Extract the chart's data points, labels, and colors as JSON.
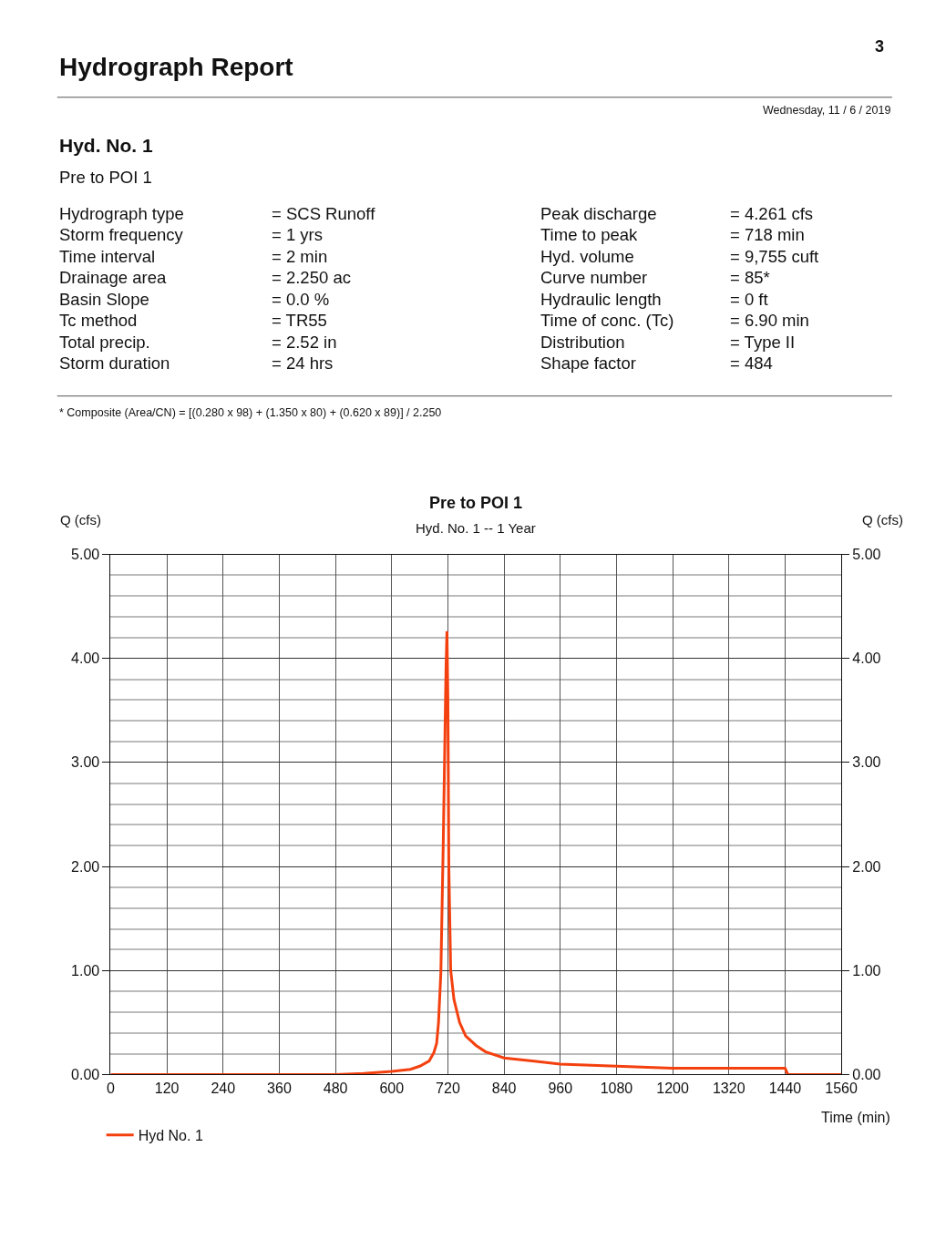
{
  "chart_data": {
    "type": "line",
    "title": "Pre to POI 1",
    "subtitle": "Hyd. No. 1 -- 1 Year",
    "xlabel": "Time (min)",
    "ylabel": "Q (cfs)",
    "y2label": "Q (cfs)",
    "annotations": [
      "3",
      "Hydrograph Report",
      "Wednesday, 11 / 6 / 2019",
      "Hyd. No. 1",
      "Pre to POI 1",
      "Hydrograph type",
      "Storm frequency",
      "Time interval",
      "Drainage area",
      "Basin Slope",
      "Tc method",
      "Total precip.",
      "Storm duration",
      "= SCS Runoff",
      "= 1 yrs",
      "= 2 min",
      "= 2.250 ac",
      "= 0.0 %",
      "= TR55",
      "= 2.52 in",
      "= 24 hrs",
      "Peak discharge",
      "Time to peak",
      "Hyd. volume",
      "Curve number",
      "Hydraulic length",
      "Time of conc. (Tc)",
      "Distribution",
      "Shape factor",
      "= 4.261 cfs",
      "= 718 min",
      "= 9,755 cuft",
      "= 85*",
      "= 0 ft",
      "= 6.90 min",
      "= Type II",
      "= 484",
      "* Composite (Area/CN) = [(0.280 x 98) + (1.350 x 80) + (0.620 x 89)] / 2.250"
    ],
    "series": [
      {
        "name": "Hyd No. 1",
        "color": "#f4400f",
        "x": [
          0,
          480,
          540,
          600,
          640,
          660,
          680,
          690,
          696,
          700,
          705,
          710,
          716,
          718,
          720,
          722,
          726,
          733,
          745,
          758,
          780,
          800,
          840,
          900,
          960,
          1080,
          1200,
          1320,
          1440,
          1446,
          1560
        ],
        "values": [
          0,
          0,
          0.01,
          0.03,
          0.05,
          0.08,
          0.13,
          0.21,
          0.3,
          0.5,
          0.98,
          2.2,
          3.9,
          4.261,
          3.6,
          2.0,
          1.0,
          0.72,
          0.5,
          0.37,
          0.28,
          0.22,
          0.16,
          0.13,
          0.1,
          0.08,
          0.06,
          0.06,
          0.06,
          0,
          0
        ]
      }
    ],
    "xlim": [
      0,
      1560
    ],
    "xticks": [
      0,
      120,
      240,
      360,
      480,
      600,
      720,
      840,
      960,
      1080,
      1200,
      1320,
      1440,
      1560
    ],
    "ylim": [
      0,
      5
    ],
    "yticks": [
      {
        "value": 0,
        "label": "0.00"
      },
      {
        "value": 0.2,
        "label": null
      },
      {
        "value": 0.4,
        "label": null
      },
      {
        "value": 0.6,
        "label": null
      },
      {
        "value": 0.8,
        "label": null
      },
      {
        "value": 1,
        "label": "1.00"
      },
      {
        "value": 1.2,
        "label": null
      },
      {
        "value": 1.4,
        "label": null
      },
      {
        "value": 1.6,
        "label": null
      },
      {
        "value": 1.8,
        "label": null
      },
      {
        "value": 2,
        "label": "2.00"
      },
      {
        "value": 2.2,
        "label": null
      },
      {
        "value": 2.4,
        "label": null
      },
      {
        "value": 2.6,
        "label": null
      },
      {
        "value": 2.8,
        "label": null
      },
      {
        "value": 3,
        "label": "3.00"
      },
      {
        "value": 3.2,
        "label": null
      },
      {
        "value": 3.4,
        "label": null
      },
      {
        "value": 3.6,
        "label": null
      },
      {
        "value": 3.8,
        "label": null
      },
      {
        "value": 4,
        "label": "4.00"
      },
      {
        "value": 4.2,
        "label": null
      },
      {
        "value": 4.4,
        "label": null
      },
      {
        "value": 4.6,
        "label": null
      },
      {
        "value": 4.8,
        "label": null
      },
      {
        "value": 5,
        "label": "5.00"
      }
    ],
    "y2lim": [
      0,
      5
    ],
    "y2ticks": [
      {
        "value": 0,
        "label": "0.00"
      },
      {
        "value": 1,
        "label": "1.00"
      },
      {
        "value": 2,
        "label": "2.00"
      },
      {
        "value": 3,
        "label": "3.00"
      },
      {
        "value": 4,
        "label": "4.00"
      },
      {
        "value": 5,
        "label": "5.00"
      }
    ],
    "grid": true,
    "legend": "bottom left",
    "line_style": "solid",
    "marker": "none"
  }
}
